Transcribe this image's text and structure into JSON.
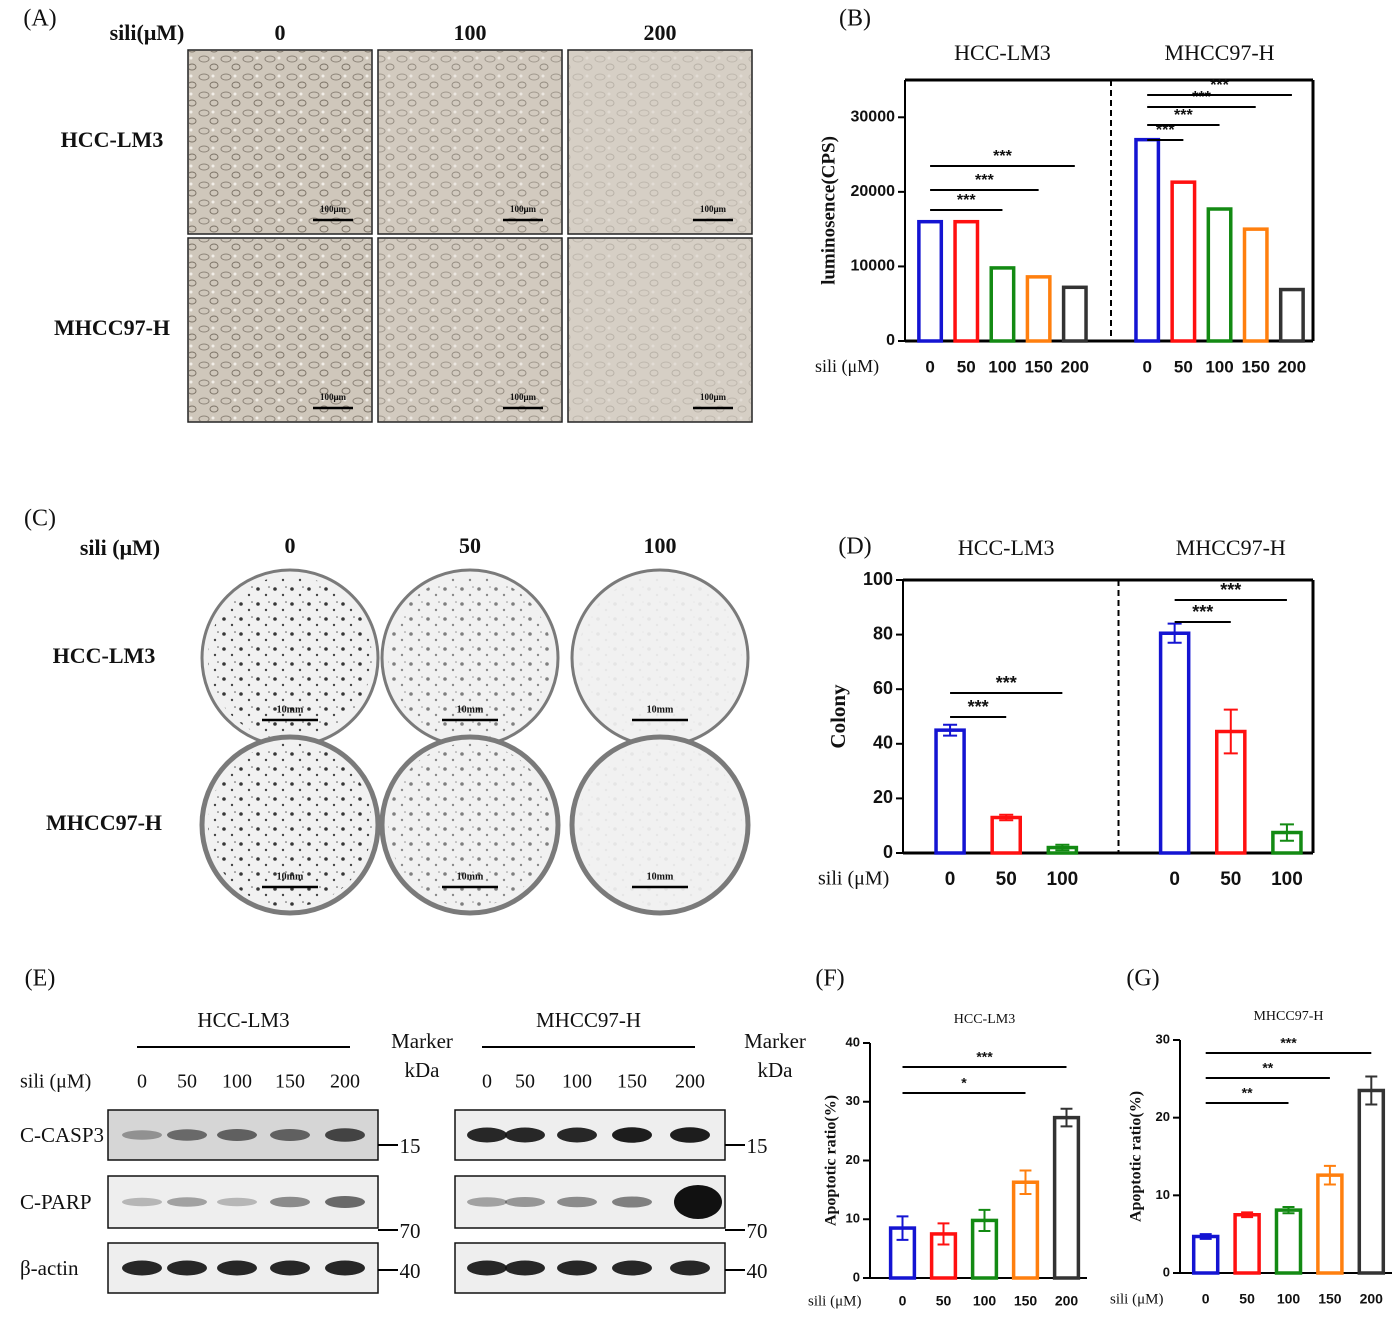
{
  "panel_a": {
    "label": "(A)",
    "axis_label": "sili(μM)",
    "columns": [
      "0",
      "100",
      "200"
    ],
    "rows": [
      "HCC-LM3",
      "MHCC97-H"
    ],
    "scale_bar": "100μm"
  },
  "panel_c": {
    "label": "(C)",
    "axis_label": "sili (μM)",
    "columns": [
      "0",
      "50",
      "100"
    ],
    "rows": [
      "HCC-LM3",
      "MHCC97-H"
    ],
    "scale_bar": "10mm"
  },
  "panel_e": {
    "label": "(E)",
    "groups": [
      "HCC-LM3",
      "MHCC97-H"
    ],
    "axis_label": "sili (μM)",
    "lanes": [
      "0",
      "50",
      "100",
      "150",
      "200"
    ],
    "rows": [
      "C-CASP3",
      "C-PARP",
      "β-actin"
    ],
    "marker_title": [
      "Marker",
      "kDa"
    ],
    "markers": [
      "15",
      "70",
      "40"
    ]
  },
  "chart_data": [
    {
      "type": "bar",
      "label": "(B)",
      "groups": [
        "HCC-LM3",
        "MHCC97-H"
      ],
      "ylabel": "luminosence(CPS)",
      "xlabel": "sili (μM)",
      "categories": [
        "0",
        "50",
        "100",
        "150",
        "200",
        null,
        "0",
        "50",
        "100",
        "150",
        "200"
      ],
      "values": [
        16000,
        16000,
        9800,
        8600,
        7200,
        0,
        27000,
        21300,
        17700,
        15000,
        6900
      ],
      "colors": [
        "#1414d2",
        "#ff1010",
        "#138a13",
        "#ff7f0e",
        "#333333",
        "#999999",
        "#1414d2",
        "#ff1010",
        "#138a13",
        "#ff7f0e",
        "#333333"
      ],
      "ylim": [
        0,
        35000
      ],
      "yticks": [
        0,
        10000,
        20000,
        30000
      ],
      "box": true,
      "annotations": [
        {
          "text": "***",
          "from": 0,
          "to": 2
        },
        {
          "text": "***",
          "from": 0,
          "to": 3
        },
        {
          "text": "***",
          "from": 0,
          "to": 4
        },
        {
          "text": "***",
          "from": 6,
          "to": 7
        },
        {
          "text": "***",
          "from": 6,
          "to": 8
        },
        {
          "text": "***",
          "from": 6,
          "to": 9
        },
        {
          "text": "***",
          "from": 6,
          "to": 10
        }
      ]
    },
    {
      "type": "bar",
      "label": "(D)",
      "groups": [
        "HCC-LM3",
        "MHCC97-H"
      ],
      "ylabel": "Colony",
      "xlabel": "sili (μM)",
      "categories": [
        "0",
        "50",
        "100",
        null,
        "0",
        "50",
        "100"
      ],
      "values": [
        45,
        13,
        2,
        0,
        80.5,
        44.5,
        7.5
      ],
      "errors": [
        2,
        1,
        1,
        0,
        3.5,
        8,
        3
      ],
      "colors": [
        "#1414d2",
        "#ff1010",
        "#138a13",
        "#999999",
        "#1414d2",
        "#ff1010",
        "#138a13"
      ],
      "ylim": [
        0,
        100
      ],
      "yticks": [
        0,
        20,
        40,
        60,
        80,
        100
      ],
      "box": true,
      "annotations": [
        {
          "text": "***",
          "from": 0,
          "to": 1
        },
        {
          "text": "***",
          "from": 0,
          "to": 2
        },
        {
          "text": "***",
          "from": 4,
          "to": 5
        },
        {
          "text": "***",
          "from": 4,
          "to": 6
        }
      ]
    },
    {
      "type": "bar",
      "label": "(F)",
      "title": "HCC-LM3",
      "ylabel": "Apoptotic ratio(%)",
      "xlabel": "sili (μM)",
      "categories": [
        "0",
        "50",
        "100",
        "150",
        "200"
      ],
      "values": [
        8.5,
        7.5,
        9.8,
        16.3,
        27.3
      ],
      "errors": [
        2,
        1.8,
        1.8,
        2,
        1.5
      ],
      "colors": [
        "#1414d2",
        "#ff1010",
        "#138a13",
        "#ff7f0e",
        "#333333"
      ],
      "ylim": [
        0,
        40
      ],
      "yticks": [
        0,
        10,
        20,
        30,
        40
      ],
      "box": false,
      "annotations": [
        {
          "text": "*",
          "from": 0,
          "to": 3
        },
        {
          "text": "***",
          "from": 0,
          "to": 4
        }
      ]
    },
    {
      "type": "bar",
      "label": "(G)",
      "title": "MHCC97-H",
      "ylabel": "Apoptotic ratio(%)",
      "xlabel": "sili (μM)",
      "categories": [
        "0",
        "50",
        "100",
        "150",
        "200"
      ],
      "values": [
        4.7,
        7.5,
        8.1,
        12.6,
        23.5
      ],
      "errors": [
        0.3,
        0.3,
        0.4,
        1.2,
        1.8
      ],
      "colors": [
        "#1414d2",
        "#ff1010",
        "#138a13",
        "#ff7f0e",
        "#333333"
      ],
      "ylim": [
        0,
        30
      ],
      "yticks": [
        0,
        10,
        20,
        30
      ],
      "box": false,
      "annotations": [
        {
          "text": "**",
          "from": 0,
          "to": 2
        },
        {
          "text": "**",
          "from": 0,
          "to": 3
        },
        {
          "text": "***",
          "from": 0,
          "to": 4
        }
      ]
    }
  ]
}
